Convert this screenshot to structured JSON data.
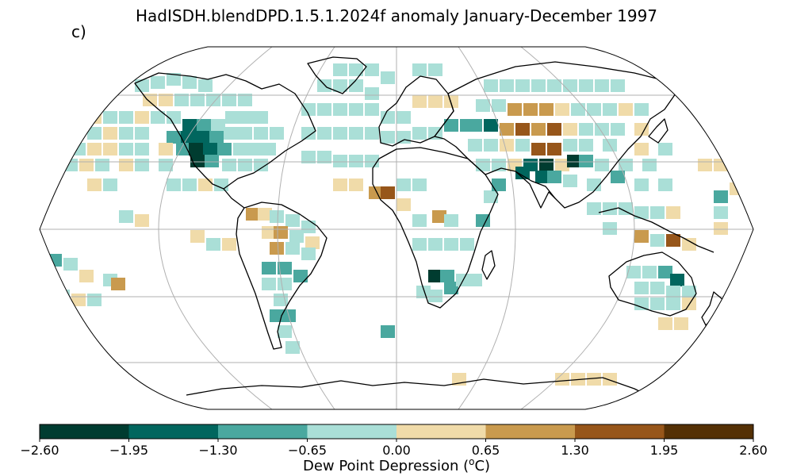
{
  "title": "HadISDH.blendDPD.1.5.1.2024f anomaly January-December 1997",
  "panel_label": "c)",
  "colorbar": {
    "label_text": "Dew Point Depression (",
    "label_sup": "o",
    "label_unit": "C)",
    "ticks": [
      "−2.60",
      "−1.95",
      "−1.30",
      "−0.65",
      "0.00",
      "0.65",
      "1.30",
      "1.95",
      "2.60"
    ],
    "bins": [
      {
        "range": "-2.60 to -1.95",
        "color": "#003c30"
      },
      {
        "range": "-1.95 to -1.30",
        "color": "#01665e"
      },
      {
        "range": "-1.30 to -0.65",
        "color": "#4aa89f"
      },
      {
        "range": "-0.65 to 0.00",
        "color": "#aadfd7"
      },
      {
        "range": "0.00 to 0.65",
        "color": "#f0dba9"
      },
      {
        "range": "0.65 to 1.30",
        "color": "#c99a4e"
      },
      {
        "range": "1.30 to 1.95",
        "color": "#97561a"
      },
      {
        "range": "1.95 to 2.60",
        "color": "#543005"
      }
    ]
  },
  "map": {
    "projection": "Robinson",
    "graticule_lon_step_deg": 60,
    "graticule_lat_step_deg": 30
  }
}
